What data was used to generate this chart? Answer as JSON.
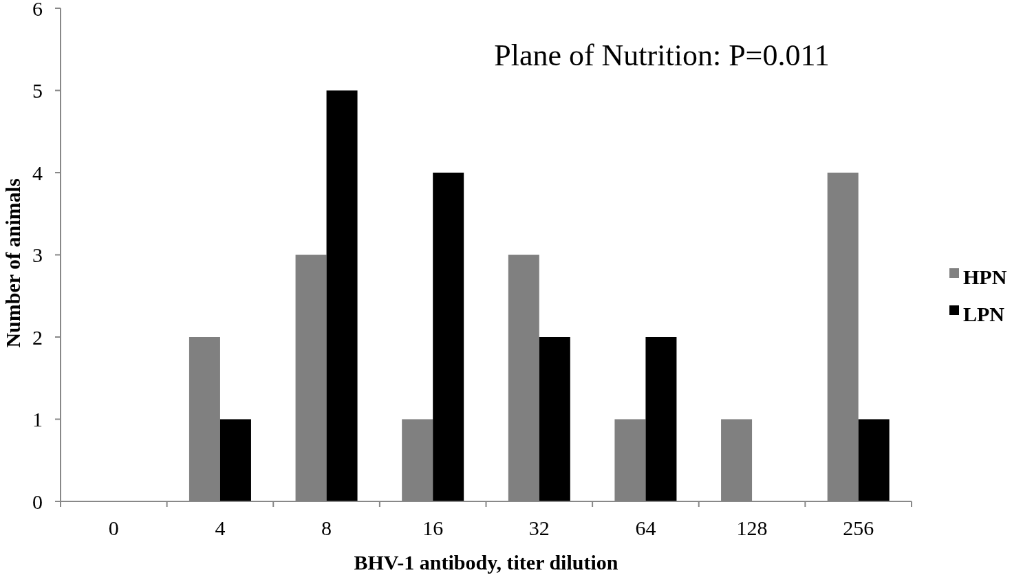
{
  "chart_data": {
    "type": "bar",
    "xlabel": "BHV-1 antibody, titer dilution",
    "ylabel": "Number of animals",
    "annotations": [
      "Plane of Nutrition: P=0.011"
    ],
    "categories": [
      "0",
      "4",
      "8",
      "16",
      "32",
      "64",
      "128",
      "256"
    ],
    "series": [
      {
        "name": "HPN",
        "color": "#808080",
        "values": [
          0,
          2,
          3,
          1,
          3,
          1,
          1,
          4
        ]
      },
      {
        "name": "LPN",
        "color": "#000000",
        "values": [
          0,
          1,
          5,
          4,
          2,
          2,
          0,
          1
        ]
      }
    ],
    "ylim": [
      0,
      6
    ],
    "yticks": [
      0,
      1,
      2,
      3,
      4,
      5,
      6
    ],
    "grid": false,
    "legend": "right"
  }
}
